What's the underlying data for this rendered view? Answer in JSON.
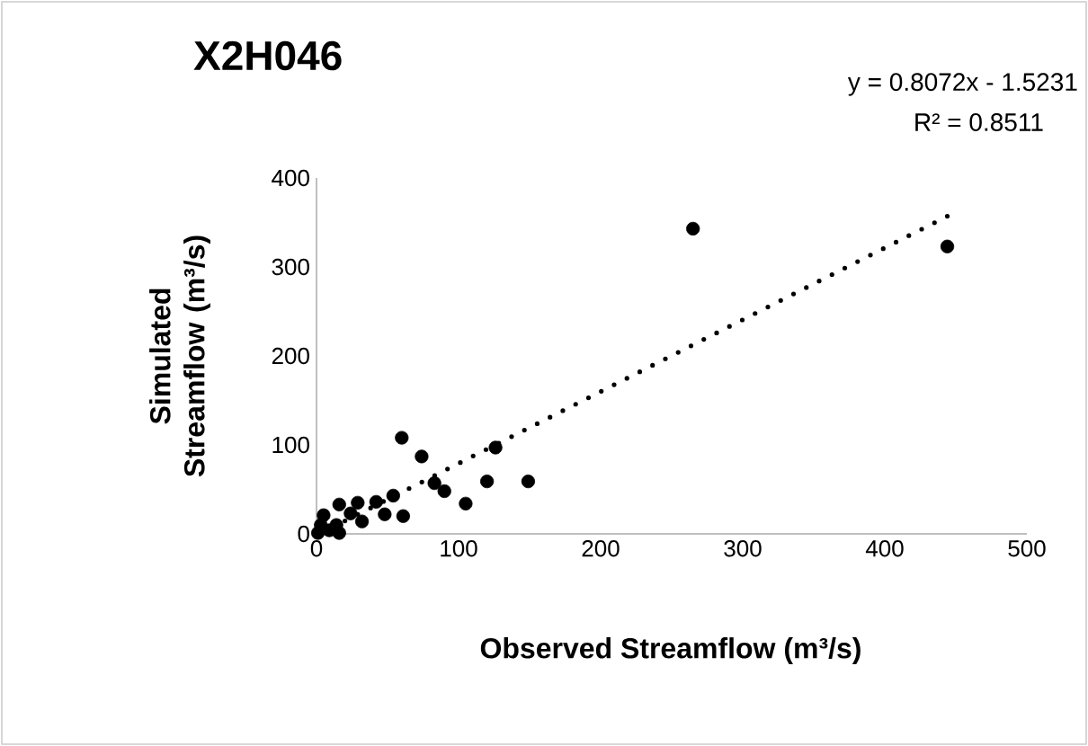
{
  "chart_data": {
    "type": "scatter",
    "title": "X2H046",
    "xlabel": "Observed Streamflow (m³/s)",
    "ylabel": "Simulated Streamflow (m³/s)",
    "annotations": [
      "y = 0.8072x - 1.5231",
      "R² = 0.8511"
    ],
    "xlim": [
      0,
      500
    ],
    "xticks": [
      0,
      100,
      200,
      300,
      400,
      500
    ],
    "ylim": [
      0,
      400
    ],
    "yticks": [
      0,
      100,
      200,
      300,
      400
    ],
    "grid": false,
    "series": [
      {
        "type": "scatter",
        "marker": "circle",
        "color": "#000000",
        "x": [
          265,
          444,
          60,
          74,
          126,
          149,
          120,
          105,
          90,
          83,
          61,
          54,
          48,
          42,
          29,
          16,
          32,
          5,
          1,
          9,
          16,
          14,
          24,
          3
        ],
        "values": [
          343,
          323,
          108,
          87,
          97,
          59,
          59,
          34,
          48,
          57,
          20,
          43,
          22,
          36,
          35,
          33,
          14,
          21,
          1,
          4,
          1,
          10,
          23,
          10
        ]
      },
      {
        "type": "line",
        "marker": "none",
        "line_style": "dotted",
        "color": "#000000",
        "x": [
          2,
          444
        ],
        "values": [
          0,
          357
        ]
      }
    ]
  }
}
